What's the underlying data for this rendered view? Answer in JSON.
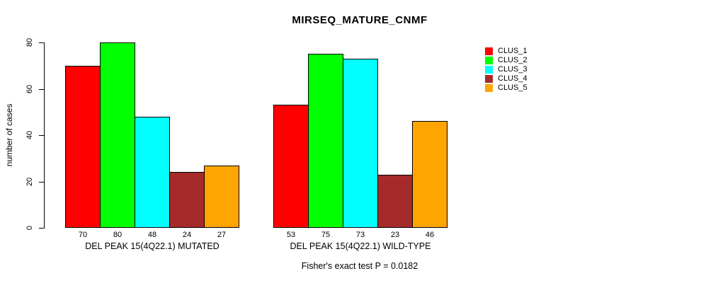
{
  "chart_data": {
    "type": "bar",
    "title": "MIRSEQ_MATURE_CNMF",
    "ylabel": "number of cases",
    "xlabel": "",
    "ylim": [
      0,
      80
    ],
    "yticks": [
      0,
      20,
      40,
      60,
      80
    ],
    "grid": false,
    "legend_position": "right",
    "categories": [
      "DEL PEAK 15(4Q22.1) MUTATED",
      "DEL PEAK 15(4Q22.1) WILD-TYPE"
    ],
    "series": [
      {
        "name": "CLUS_1",
        "color": "#ff0000",
        "values": [
          70,
          53
        ]
      },
      {
        "name": "CLUS_2",
        "color": "#00ff00",
        "values": [
          80,
          75
        ]
      },
      {
        "name": "CLUS_3",
        "color": "#00ffff",
        "values": [
          48,
          73
        ]
      },
      {
        "name": "CLUS_4",
        "color": "#a52a2a",
        "values": [
          24,
          23
        ]
      },
      {
        "name": "CLUS_5",
        "color": "#ffa500",
        "values": [
          27,
          46
        ]
      }
    ],
    "bar_value_labels": [
      [
        70,
        80,
        48,
        24,
        27
      ],
      [
        53,
        75,
        73,
        23,
        46
      ]
    ],
    "footnote": "Fisher's exact test P = 0.0182"
  }
}
